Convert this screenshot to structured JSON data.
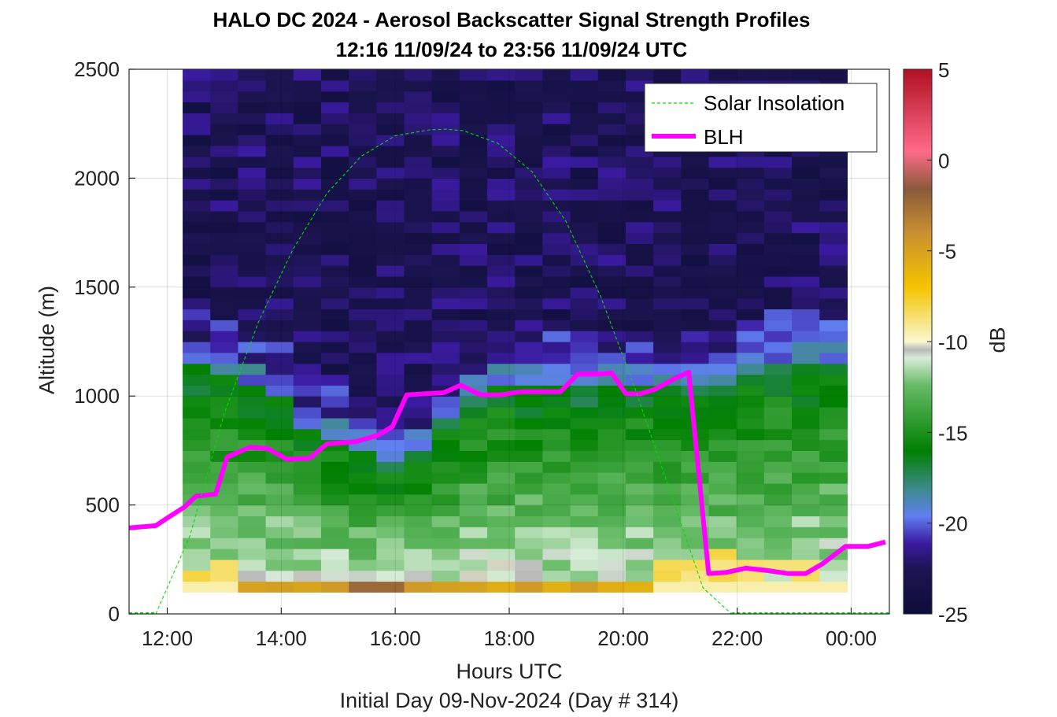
{
  "chart_data": {
    "type": "heatmap",
    "title": "HALO DC 2024 - Aerosol Backscatter Signal Strength Profiles",
    "subtitle": "12:16 11/09/24 to 23:56 11/09/24  UTC",
    "xlabel": "Hours UTC",
    "ylabel": "Altitude (m)",
    "note": "Initial Day 09-Nov-2024 (Day # 314)",
    "colorbar_label": "dB",
    "xlim_hours": [
      11.33,
      24.67
    ],
    "ylim": [
      0,
      2500
    ],
    "x_ticks": [
      12,
      14,
      16,
      18,
      20,
      22,
      24
    ],
    "x_tick_labels": [
      "12:00",
      "14:00",
      "16:00",
      "18:00",
      "20:00",
      "22:00",
      "00:00"
    ],
    "y_ticks": [
      0,
      500,
      1000,
      1500,
      2000,
      2500
    ],
    "y_tick_labels": [
      "0",
      "500",
      "1000",
      "1500",
      "2000",
      "2500"
    ],
    "colorbar_ticks": [
      5,
      0,
      -5,
      -10,
      -15,
      -20,
      -25
    ],
    "colorbar_tick_labels": [
      "5",
      "0",
      "-5",
      "-10",
      "-15",
      "-20",
      "-25"
    ],
    "clim": [
      -25,
      5
    ],
    "heatmap": {
      "time_start_hours": 12.27,
      "time_end_hours": 23.93,
      "n_columns": 24,
      "alt_bottom": 100,
      "alt_top": 2500,
      "n_rows": 48,
      "bl_top_by_column": [
        1200,
        1150,
        1100,
        1050,
        900,
        850,
        780,
        750,
        800,
        950,
        1050,
        1100,
        1100,
        1100,
        1100,
        1100,
        1100,
        1100,
        1100,
        1100,
        1150,
        1200,
        1200,
        1200
      ]
    },
    "legend": {
      "position": "top-right",
      "entries": [
        "Solar Insolation",
        "BLH"
      ]
    },
    "series": [
      {
        "name": "BLH",
        "color": "#ff00ff",
        "x": [
          11.33,
          11.8,
          12.0,
          12.3,
          12.5,
          12.85,
          13.05,
          13.45,
          13.75,
          14.1,
          14.5,
          14.8,
          15.3,
          15.7,
          15.95,
          16.2,
          16.5,
          16.85,
          17.15,
          17.5,
          17.85,
          18.2,
          18.5,
          18.9,
          19.2,
          19.5,
          19.8,
          20.05,
          20.3,
          20.55,
          20.9,
          21.15,
          21.5,
          21.8,
          22.15,
          22.5,
          22.9,
          23.2,
          23.5,
          23.9,
          24.3,
          24.6
        ],
        "y": [
          395,
          405,
          440,
          490,
          540,
          550,
          720,
          765,
          760,
          710,
          715,
          780,
          790,
          820,
          860,
          1005,
          1010,
          1015,
          1050,
          1005,
          1005,
          1020,
          1020,
          1020,
          1100,
          1100,
          1105,
          1010,
          1010,
          1030,
          1080,
          1110,
          185,
          190,
          210,
          200,
          185,
          185,
          230,
          310,
          310,
          330
        ]
      },
      {
        "name": "Solar Insolation",
        "color": "#00dd00",
        "x": [
          11.8,
          12.4,
          13.0,
          13.6,
          14.2,
          14.8,
          15.4,
          16.0,
          16.6,
          16.9,
          17.2,
          17.8,
          18.4,
          19.0,
          19.6,
          20.2,
          20.8,
          21.4,
          21.9
        ],
        "y": [
          0,
          360,
          920,
          1340,
          1670,
          1930,
          2100,
          2195,
          2222,
          2225,
          2218,
          2160,
          2030,
          1800,
          1460,
          1040,
          580,
          120,
          0
        ]
      }
    ]
  }
}
